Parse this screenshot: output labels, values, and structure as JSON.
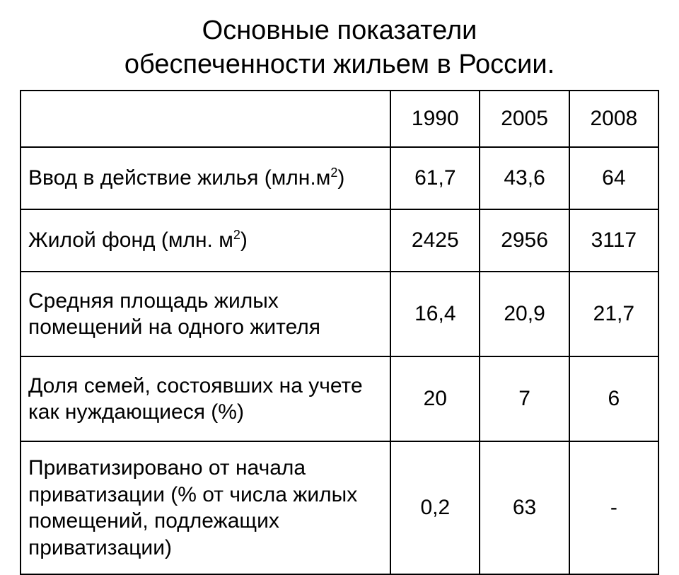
{
  "title_line1": "Основные показатели",
  "title_line2": "обеспеченности жильем в России.",
  "table": {
    "type": "table",
    "border_color": "#000000",
    "background_color": "#ffffff",
    "text_color": "#000000",
    "header_fontsize_pt": 24,
    "label_fontsize_pt": 21,
    "value_fontsize_pt": 24,
    "columns": [
      "",
      "1990",
      "2005",
      "2008"
    ],
    "col_widths_pct": [
      58,
      14,
      14,
      14
    ],
    "rows": [
      {
        "label_html": "Ввод в действие жилья (млн.м<sup>2</sup>)",
        "values": [
          "61,7",
          "43,6",
          "64"
        ]
      },
      {
        "label_html": "Жилой фонд (млн. м<sup>2</sup>)",
        "values": [
          "2425",
          "2956",
          "3117"
        ]
      },
      {
        "label_html": "Средняя площадь жилых помещений на одного жителя",
        "values": [
          "16,4",
          "20,9",
          "21,7"
        ]
      },
      {
        "label_html": "Доля семей, состоявших на учете как нуждающиеся (%)",
        "values": [
          "20",
          "7",
          "6"
        ]
      },
      {
        "label_html": "Приватизировано от начала приватизации (% от числа жилых помещений, подлежащих приватизации)",
        "values": [
          "0,2",
          "63",
          "-"
        ]
      }
    ]
  }
}
